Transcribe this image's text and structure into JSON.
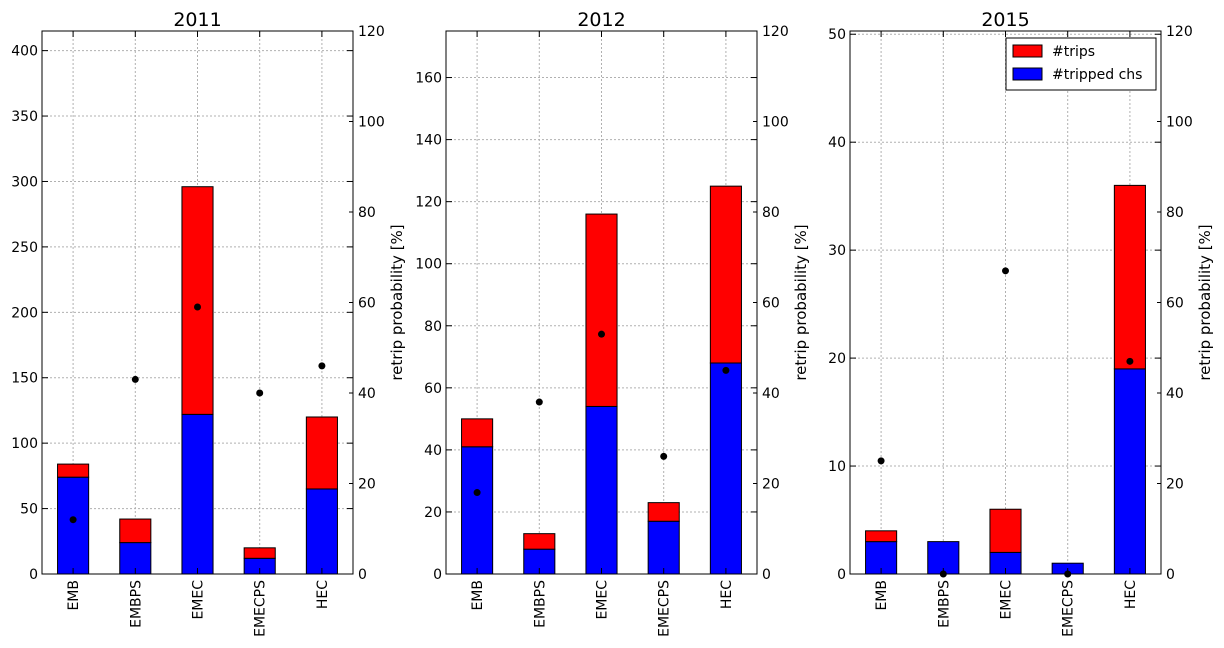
{
  "chart_data": [
    {
      "type": "bar",
      "stacked": true,
      "title": "2011",
      "categories": [
        "EMB",
        "EMBPS",
        "EMEC",
        "EMECPS",
        "HEC"
      ],
      "series": [
        {
          "name": "#tripped chs",
          "color": "#0000ff",
          "values": [
            74,
            24,
            122,
            12,
            65
          ]
        },
        {
          "name": "#trips",
          "color": "#ff0000",
          "values": [
            10,
            18,
            174,
            8,
            55
          ]
        }
      ],
      "points": {
        "color": "#000000",
        "axis": "right",
        "values": [
          12,
          43,
          59,
          40,
          46
        ]
      },
      "ylim": [
        0,
        415
      ],
      "yticks": [
        0,
        50,
        100,
        150,
        200,
        250,
        300,
        350,
        400
      ],
      "y2lim": [
        0,
        120
      ],
      "y2ticks": [
        0,
        20,
        40,
        60,
        80,
        100,
        120
      ],
      "y2label": "retrip probability [%]",
      "grid": true,
      "legend": null
    },
    {
      "type": "bar",
      "stacked": true,
      "title": "2012",
      "categories": [
        "EMB",
        "EMBPS",
        "EMEC",
        "EMECPS",
        "HEC"
      ],
      "series": [
        {
          "name": "#tripped chs",
          "color": "#0000ff",
          "values": [
            41,
            8,
            54,
            17,
            68
          ]
        },
        {
          "name": "#trips",
          "color": "#ff0000",
          "values": [
            9,
            5,
            62,
            6,
            57
          ]
        }
      ],
      "points": {
        "color": "#000000",
        "axis": "right",
        "values": [
          18,
          38,
          53,
          26,
          45
        ]
      },
      "ylim": [
        0,
        175
      ],
      "yticks": [
        0,
        20,
        40,
        60,
        80,
        100,
        120,
        140,
        160
      ],
      "y2lim": [
        0,
        120
      ],
      "y2ticks": [
        0,
        20,
        40,
        60,
        80,
        100,
        120
      ],
      "y2label": "retrip probability [%]",
      "grid": true,
      "legend": null
    },
    {
      "type": "bar",
      "stacked": true,
      "title": "2015",
      "categories": [
        "EMB",
        "EMBPS",
        "EMEC",
        "EMECPS",
        "HEC"
      ],
      "series": [
        {
          "name": "#tripped chs",
          "color": "#0000ff",
          "values": [
            3,
            3,
            2,
            1,
            19
          ]
        },
        {
          "name": "#trips",
          "color": "#ff0000",
          "values": [
            1,
            0,
            4,
            0,
            17
          ]
        }
      ],
      "points": {
        "color": "#000000",
        "axis": "right",
        "values": [
          25,
          0,
          67,
          0,
          47
        ]
      },
      "ylim": [
        0,
        50.3
      ],
      "yticks": [
        0,
        10,
        20,
        30,
        40,
        50
      ],
      "y2lim": [
        0,
        120
      ],
      "y2ticks": [
        0,
        20,
        40,
        60,
        80,
        100,
        120
      ],
      "y2label": "retrip probability [%]",
      "grid": true,
      "legend": {
        "position": "top-right",
        "entries": [
          "#trips",
          "#tripped chs"
        ]
      }
    }
  ]
}
